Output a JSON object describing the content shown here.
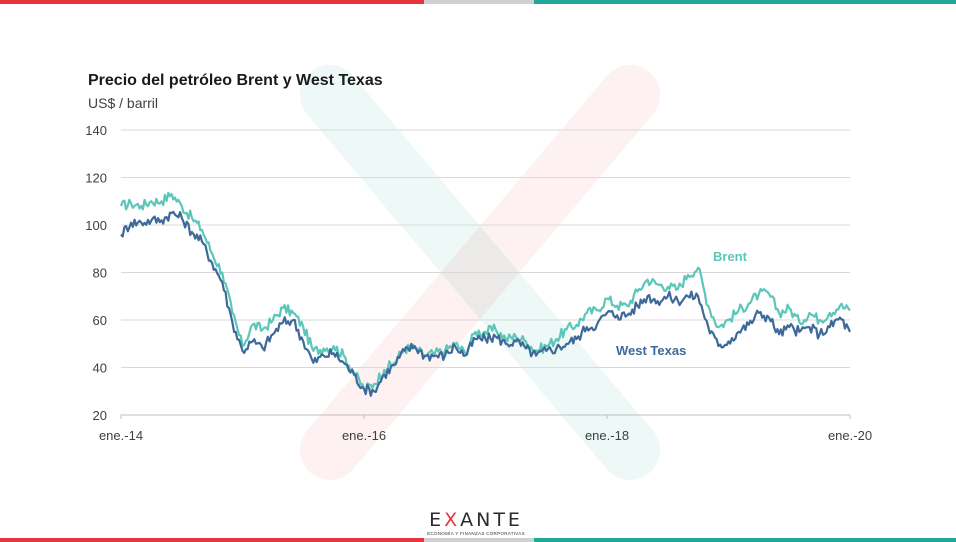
{
  "chart_data": {
    "type": "line",
    "title": "Precio del petróleo Brent y West Texas",
    "ylabel": "US$ / barril",
    "xlabel": "",
    "ylim": [
      20,
      140
    ],
    "y_ticks": [
      "20",
      "40",
      "60",
      "80",
      "100",
      "120",
      "140"
    ],
    "x_ticks": [
      "ene.-14",
      "ene.-16",
      "ene.-18",
      "ene.-20"
    ],
    "x_tick_positions": [
      "2014-01",
      "2016-01",
      "2018-01",
      "2020-01"
    ],
    "x_range": [
      "2014-01",
      "2020-01"
    ],
    "grid": true,
    "legend": "inline labels",
    "x": [
      "2014-01",
      "2014-02",
      "2014-03",
      "2014-04",
      "2014-05",
      "2014-06",
      "2014-07",
      "2014-08",
      "2014-09",
      "2014-10",
      "2014-11",
      "2014-12",
      "2015-01",
      "2015-02",
      "2015-03",
      "2015-04",
      "2015-05",
      "2015-06",
      "2015-07",
      "2015-08",
      "2015-09",
      "2015-10",
      "2015-11",
      "2015-12",
      "2016-01",
      "2016-02",
      "2016-03",
      "2016-04",
      "2016-05",
      "2016-06",
      "2016-07",
      "2016-08",
      "2016-09",
      "2016-10",
      "2016-11",
      "2016-12",
      "2017-01",
      "2017-02",
      "2017-03",
      "2017-04",
      "2017-05",
      "2017-06",
      "2017-07",
      "2017-08",
      "2017-09",
      "2017-10",
      "2017-11",
      "2017-12",
      "2018-01",
      "2018-02",
      "2018-03",
      "2018-04",
      "2018-05",
      "2018-06",
      "2018-07",
      "2018-08",
      "2018-09",
      "2018-10",
      "2018-11",
      "2018-12",
      "2019-01",
      "2019-02",
      "2019-03",
      "2019-04",
      "2019-05",
      "2019-06",
      "2019-07",
      "2019-08",
      "2019-09",
      "2019-10",
      "2019-11",
      "2019-12",
      "2020-01"
    ],
    "series": [
      {
        "name": "Brent",
        "color": "#5cc7b9",
        "values": [
          108,
          109,
          108,
          110,
          110,
          113,
          108,
          103,
          98,
          88,
          80,
          63,
          49,
          58,
          56,
          60,
          65,
          63,
          57,
          47,
          48,
          49,
          45,
          38,
          31,
          33,
          39,
          42,
          48,
          48,
          45,
          46,
          47,
          50,
          46,
          55,
          55,
          56,
          52,
          53,
          51,
          47,
          49,
          52,
          56,
          58,
          63,
          64,
          69,
          66,
          66,
          72,
          77,
          75,
          74,
          73,
          79,
          82,
          66,
          57,
          60,
          64,
          67,
          71,
          71,
          63,
          65,
          59,
          63,
          60,
          63,
          66,
          64
        ]
      },
      {
        "name": "West Texas",
        "color": "#3e6a9a",
        "values": [
          96,
          101,
          101,
          102,
          102,
          105,
          103,
          97,
          93,
          84,
          76,
          59,
          47,
          51,
          48,
          54,
          59,
          60,
          51,
          42,
          45,
          46,
          42,
          37,
          31,
          30,
          37,
          41,
          47,
          49,
          45,
          45,
          45,
          49,
          45,
          52,
          52,
          53,
          50,
          51,
          48,
          45,
          47,
          48,
          50,
          52,
          57,
          58,
          63,
          62,
          62,
          66,
          70,
          68,
          70,
          68,
          70,
          70,
          57,
          49,
          51,
          55,
          58,
          63,
          61,
          54,
          57,
          55,
          57,
          54,
          57,
          61,
          55
        ]
      }
    ]
  },
  "logo": {
    "word_prefix": "E",
    "word_x": "X",
    "word_suffix": "ANTE",
    "tagline": "ECONOMÍA Y FINANZAS CORPORATIVAS"
  }
}
